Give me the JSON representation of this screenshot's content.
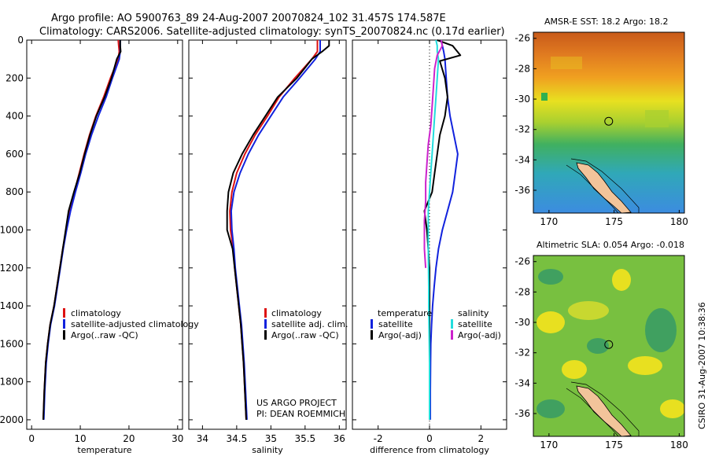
{
  "title_line1": "Argo profile: AO 5900763_89 24-Aug-2007 20070824_102 31.457S 174.587E",
  "title_line2": "Climatology: CARS2006. Satellite-adjusted climatology: synTS_20070824.nc (0.17d earlier)",
  "side_label": "CSIRO 31-Aug-2007 10:38:36",
  "project_line1": "US ARGO PROJECT",
  "project_line2": "PI: DEAN ROEMMICH",
  "colors": {
    "red": "#dd1111",
    "blue": "#1122dd",
    "black": "#000000",
    "cyan": "#22dddd",
    "magenta": "#cc22cc"
  },
  "chart_data": [
    {
      "type": "line",
      "id": "temperature",
      "xlabel": "temperature",
      "xlim": [
        -1,
        31
      ],
      "ylim": [
        2050,
        0
      ],
      "xticks": [
        0,
        10,
        20,
        30
      ],
      "yticks": [
        0,
        200,
        400,
        600,
        800,
        1000,
        1200,
        1400,
        1600,
        1800,
        2000
      ],
      "legend": [
        "climatology",
        "satellite-adjusted climatology",
        "Argo(..raw -QC)"
      ],
      "series": [
        {
          "name": "climatology",
          "color": "red",
          "x": [
            17.8,
            17.9,
            18.0,
            17.8,
            16.2,
            14.8,
            13.2,
            11.9,
            10.8,
            9.8,
            8.8,
            7.9,
            7.1,
            6.4,
            5.8,
            5.2,
            4.6,
            3.8,
            3.3,
            2.9,
            2.6,
            2.4
          ],
          "y": [
            0,
            30,
            60,
            100,
            200,
            300,
            400,
            500,
            600,
            700,
            800,
            900,
            1000,
            1100,
            1200,
            1300,
            1400,
            1500,
            1600,
            1700,
            1850,
            2000
          ]
        },
        {
          "name": "satellite-adjusted climatology",
          "color": "blue",
          "x": [
            18.2,
            18.2,
            18.2,
            18.0,
            16.6,
            15.3,
            13.7,
            12.3,
            11.1,
            10.1,
            9.0,
            8.0,
            7.2,
            6.5,
            5.9,
            5.3,
            4.7,
            3.9,
            3.4,
            3.0,
            2.7,
            2.5
          ],
          "y": [
            0,
            30,
            60,
            100,
            200,
            300,
            400,
            500,
            600,
            700,
            800,
            900,
            1000,
            1100,
            1200,
            1300,
            1400,
            1500,
            1600,
            1700,
            1850,
            2000
          ]
        },
        {
          "name": "Argo(..raw -QC)",
          "color": "black",
          "x": [
            18.2,
            18.2,
            18.3,
            17.5,
            16.4,
            15.0,
            13.3,
            12.0,
            10.9,
            9.9,
            8.7,
            7.6,
            7.0,
            6.4,
            5.8,
            5.2,
            4.6,
            3.8,
            3.3,
            2.9,
            2.6,
            2.4
          ],
          "y": [
            0,
            30,
            60,
            100,
            200,
            300,
            400,
            500,
            600,
            700,
            800,
            900,
            1000,
            1100,
            1200,
            1300,
            1400,
            1500,
            1600,
            1700,
            1850,
            2000
          ]
        }
      ]
    },
    {
      "type": "line",
      "id": "salinity",
      "xlabel": "salinity",
      "xlim": [
        33.8,
        36.1
      ],
      "ylim": [
        2050,
        0
      ],
      "xticks": [
        34,
        34.5,
        35,
        35.5,
        36
      ],
      "legend": [
        "climatology",
        "satellite adj. clim.",
        "Argo(..raw -QC)"
      ],
      "series": [
        {
          "name": "climatology",
          "color": "red",
          "x": [
            35.68,
            35.68,
            35.68,
            35.6,
            35.35,
            35.12,
            34.95,
            34.77,
            34.62,
            34.5,
            34.43,
            34.4,
            34.41,
            34.45,
            34.47,
            34.5,
            34.53,
            34.56,
            34.58,
            34.6,
            34.62,
            34.64
          ],
          "y": [
            0,
            30,
            60,
            100,
            200,
            300,
            400,
            500,
            600,
            700,
            800,
            900,
            1000,
            1100,
            1200,
            1300,
            1400,
            1500,
            1600,
            1700,
            1850,
            2000
          ]
        },
        {
          "name": "satellite adj. clim.",
          "color": "blue",
          "x": [
            35.72,
            35.72,
            35.72,
            35.65,
            35.42,
            35.18,
            35.0,
            34.82,
            34.67,
            34.55,
            34.46,
            34.42,
            34.43,
            34.46,
            34.48,
            34.51,
            34.54,
            34.57,
            34.59,
            34.61,
            34.63,
            34.65
          ],
          "y": [
            0,
            30,
            60,
            100,
            200,
            300,
            400,
            500,
            600,
            700,
            800,
            900,
            1000,
            1100,
            1200,
            1300,
            1400,
            1500,
            1600,
            1700,
            1850,
            2000
          ]
        },
        {
          "name": "Argo(..raw -QC)",
          "color": "black",
          "x": [
            35.85,
            35.85,
            35.75,
            35.6,
            35.38,
            35.1,
            34.92,
            34.74,
            34.58,
            34.45,
            34.38,
            34.36,
            34.36,
            34.44,
            34.47,
            34.5,
            34.53,
            34.56,
            34.58,
            34.6,
            34.62,
            34.64
          ],
          "y": [
            0,
            30,
            60,
            100,
            200,
            300,
            400,
            500,
            600,
            700,
            800,
            900,
            1000,
            1100,
            1200,
            1300,
            1400,
            1500,
            1600,
            1700,
            1850,
            2000
          ]
        }
      ]
    },
    {
      "type": "line",
      "id": "difference",
      "xlabel": "difference from climatology",
      "xlim": [
        -3,
        3
      ],
      "ylim": [
        2050,
        0
      ],
      "xticks": [
        -2,
        0,
        2
      ],
      "legend_groups": [
        "temperature",
        "salinity"
      ],
      "legend": [
        "satellite",
        "Argo(-adj)",
        "satellite",
        "Argo(-adj)"
      ],
      "series": [
        {
          "name": "temperature satellite",
          "color": "blue",
          "x": [
            0.45,
            0.5,
            0.55,
            0.6,
            0.65,
            0.7,
            0.8,
            0.95,
            1.1,
            1.0,
            0.9,
            0.7,
            0.5,
            0.35,
            0.25,
            0.18,
            0.12,
            0.08,
            0.05,
            0.04,
            0.03,
            0.03
          ],
          "y": [
            0,
            30,
            60,
            100,
            200,
            300,
            400,
            500,
            600,
            700,
            800,
            900,
            1000,
            1100,
            1200,
            1300,
            1400,
            1500,
            1600,
            1700,
            1850,
            2000
          ]
        },
        {
          "name": "temperature Argo(-adj)",
          "color": "black",
          "x": [
            0.3,
            0.9,
            1.2,
            0.4,
            0.6,
            0.7,
            0.6,
            0.4,
            0.3,
            0.2,
            0.1,
            -0.2,
            -0.1,
            -0.05,
            0,
            0,
            0,
            0,
            0,
            0,
            0,
            0
          ],
          "y": [
            0,
            30,
            80,
            110,
            200,
            300,
            400,
            500,
            600,
            700,
            800,
            900,
            1000,
            1100,
            1200,
            1300,
            1400,
            1500,
            1600,
            1700,
            1850,
            2000
          ]
        },
        {
          "name": "salinity satellite",
          "color": "cyan",
          "x": [
            0.25,
            0.3,
            0.3,
            0.35,
            0.3,
            0.25,
            0.2,
            0.15,
            0.1,
            0.05,
            0.0,
            -0.05,
            -0.05,
            -0.05,
            -0.04,
            -0.03,
            -0.03,
            -0.02,
            -0.01,
            0,
            0,
            0
          ],
          "y": [
            0,
            30,
            60,
            100,
            200,
            300,
            400,
            500,
            600,
            700,
            800,
            900,
            1000,
            1100,
            1200,
            1300,
            1400,
            1500,
            1600,
            1700,
            1850,
            2000
          ]
        },
        {
          "name": "salinity Argo(-adj)",
          "color": "magenta",
          "x": [
            0.45,
            0.5,
            0.3,
            0.2,
            0.15,
            0.1,
            0.05,
            -0.05,
            -0.1,
            -0.15,
            -0.15,
            -0.2,
            -0.2,
            -0.15
          ],
          "y": [
            0,
            30,
            80,
            150,
            250,
            350,
            450,
            550,
            650,
            750,
            850,
            950,
            1100,
            1200
          ]
        }
      ]
    },
    {
      "type": "heatmap",
      "id": "sst-map",
      "title": "AMSR-E SST: 18.2 Argo: 18.2",
      "xlim": [
        168.8,
        180.4
      ],
      "ylim": [
        -37.5,
        -25.6
      ],
      "xticks": [
        170,
        175,
        180
      ],
      "yticks": [
        -26,
        -28,
        -30,
        -32,
        -34,
        -36
      ],
      "marker": {
        "lon": 174.587,
        "lat": -31.457
      }
    },
    {
      "type": "heatmap",
      "id": "sla-map",
      "title": "Altimetric SLA: 0.054 Argo: -0.018",
      "xlim": [
        168.8,
        180.4
      ],
      "ylim": [
        -37.5,
        -25.6
      ],
      "xticks": [
        170,
        175,
        180
      ],
      "yticks": [
        -26,
        -28,
        -30,
        -32,
        -34,
        -36
      ],
      "marker": {
        "lon": 174.587,
        "lat": -31.457
      }
    }
  ]
}
